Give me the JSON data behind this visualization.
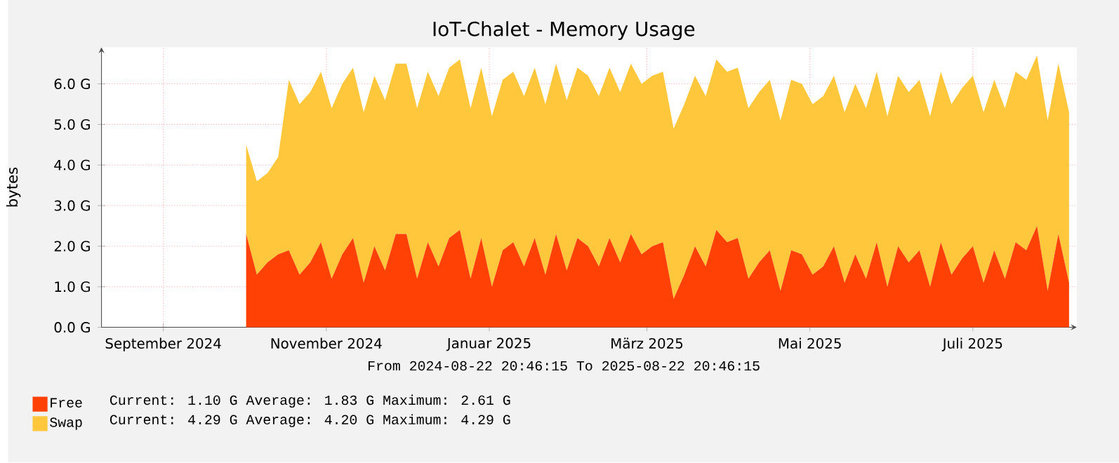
{
  "chart_data": {
    "type": "area",
    "stacked": true,
    "title": "IoT-Chalet - Memory Usage",
    "ylabel": "bytes",
    "x": [
      "2024-10-16",
      "2024-10-20",
      "2024-10-24",
      "2024-10-28",
      "2024-11-01",
      "2024-11-05",
      "2024-11-09",
      "2024-11-13",
      "2024-11-17",
      "2024-11-21",
      "2024-11-25",
      "2024-11-29",
      "2024-12-03",
      "2024-12-07",
      "2024-12-11",
      "2024-12-15",
      "2024-12-19",
      "2024-12-23",
      "2024-12-27",
      "2024-12-31",
      "2025-01-04",
      "2025-01-08",
      "2025-01-12",
      "2025-01-16",
      "2025-01-20",
      "2025-01-24",
      "2025-01-28",
      "2025-02-01",
      "2025-02-05",
      "2025-02-09",
      "2025-02-13",
      "2025-02-17",
      "2025-02-21",
      "2025-02-25",
      "2025-03-01",
      "2025-03-05",
      "2025-03-09",
      "2025-03-13",
      "2025-03-17",
      "2025-03-21",
      "2025-03-25",
      "2025-03-29",
      "2025-04-02",
      "2025-04-06",
      "2025-04-10",
      "2025-04-14",
      "2025-04-18",
      "2025-04-22",
      "2025-04-26",
      "2025-04-30",
      "2025-05-04",
      "2025-05-08",
      "2025-05-12",
      "2025-05-16",
      "2025-05-20",
      "2025-05-24",
      "2025-05-28",
      "2025-06-01",
      "2025-06-05",
      "2025-06-09",
      "2025-06-13",
      "2025-06-17",
      "2025-06-21",
      "2025-06-25",
      "2025-06-29",
      "2025-07-03",
      "2025-07-07",
      "2025-07-11",
      "2025-07-15",
      "2025-07-19",
      "2025-07-23",
      "2025-07-27",
      "2025-07-31",
      "2025-08-04",
      "2025-08-08",
      "2025-08-12",
      "2025-08-16",
      "2025-08-20"
    ],
    "series": [
      {
        "name": "Free",
        "color": "#ff4105",
        "values": [
          2.3,
          1.3,
          1.6,
          1.8,
          1.9,
          1.3,
          1.6,
          2.1,
          1.2,
          1.8,
          2.2,
          1.1,
          2.0,
          1.4,
          2.3,
          2.3,
          1.2,
          2.1,
          1.5,
          2.2,
          2.4,
          1.2,
          2.2,
          1.0,
          1.9,
          2.1,
          1.5,
          2.2,
          1.3,
          2.3,
          1.4,
          2.2,
          2.0,
          1.5,
          2.2,
          1.6,
          2.3,
          1.8,
          2.0,
          2.1,
          0.7,
          1.3,
          2.0,
          1.5,
          2.4,
          2.1,
          2.2,
          1.2,
          1.6,
          1.9,
          0.9,
          1.9,
          1.8,
          1.3,
          1.5,
          2.0,
          1.1,
          1.8,
          1.2,
          2.1,
          1.0,
          2.0,
          1.6,
          1.9,
          1.0,
          2.1,
          1.3,
          1.7,
          2.0,
          1.1,
          1.9,
          1.2,
          2.1,
          1.9,
          2.5,
          0.9,
          2.3,
          1.1
        ]
      },
      {
        "name": "Swap",
        "color": "#ffc73b",
        "values": [
          2.2,
          2.3,
          2.2,
          2.4,
          4.2,
          4.2,
          4.2,
          4.2,
          4.2,
          4.2,
          4.2,
          4.2,
          4.2,
          4.2,
          4.2,
          4.2,
          4.2,
          4.2,
          4.2,
          4.2,
          4.2,
          4.2,
          4.2,
          4.2,
          4.2,
          4.2,
          4.2,
          4.2,
          4.2,
          4.2,
          4.2,
          4.2,
          4.2,
          4.2,
          4.2,
          4.2,
          4.2,
          4.2,
          4.2,
          4.2,
          4.2,
          4.2,
          4.2,
          4.2,
          4.2,
          4.2,
          4.2,
          4.2,
          4.2,
          4.2,
          4.2,
          4.2,
          4.2,
          4.2,
          4.2,
          4.2,
          4.2,
          4.2,
          4.2,
          4.2,
          4.2,
          4.2,
          4.2,
          4.2,
          4.2,
          4.2,
          4.2,
          4.2,
          4.2,
          4.2,
          4.2,
          4.2,
          4.2,
          4.2,
          4.2,
          4.2,
          4.2,
          4.2
        ]
      }
    ],
    "xlim": [
      "2024-08-22T20:46",
      "2025-08-22T20:46"
    ],
    "xticks": [
      {
        "value": "2024-09-15",
        "label": "September 2024"
      },
      {
        "value": "2024-11-15",
        "label": "November 2024"
      },
      {
        "value": "2025-01-15",
        "label": "Januar 2025"
      },
      {
        "value": "2025-03-15",
        "label": "März 2025"
      },
      {
        "value": "2025-05-15",
        "label": "Mai 2025"
      },
      {
        "value": "2025-07-15",
        "label": "Juli 2025"
      }
    ],
    "ylim": [
      0,
      6.9
    ],
    "yticks": [
      {
        "value": 0,
        "label": "0.0 G"
      },
      {
        "value": 1,
        "label": "1.0 G"
      },
      {
        "value": 2,
        "label": "2.0 G"
      },
      {
        "value": 3,
        "label": "3.0 G"
      },
      {
        "value": 4,
        "label": "4.0 G"
      },
      {
        "value": 5,
        "label": "5.0 G"
      },
      {
        "value": 6,
        "label": "6.0 G"
      }
    ],
    "grid": true,
    "legend": "bottom left",
    "annotations": [
      "From 2024-08-22 20:46:15 To 2025-08-22 20:46:15",
      "Current:    1.10 G   Average:    1.83 G   Maximum:    2.61 G",
      "Current:    4.29 G   Average:    4.20 G   Maximum:    4.29 G"
    ]
  }
}
